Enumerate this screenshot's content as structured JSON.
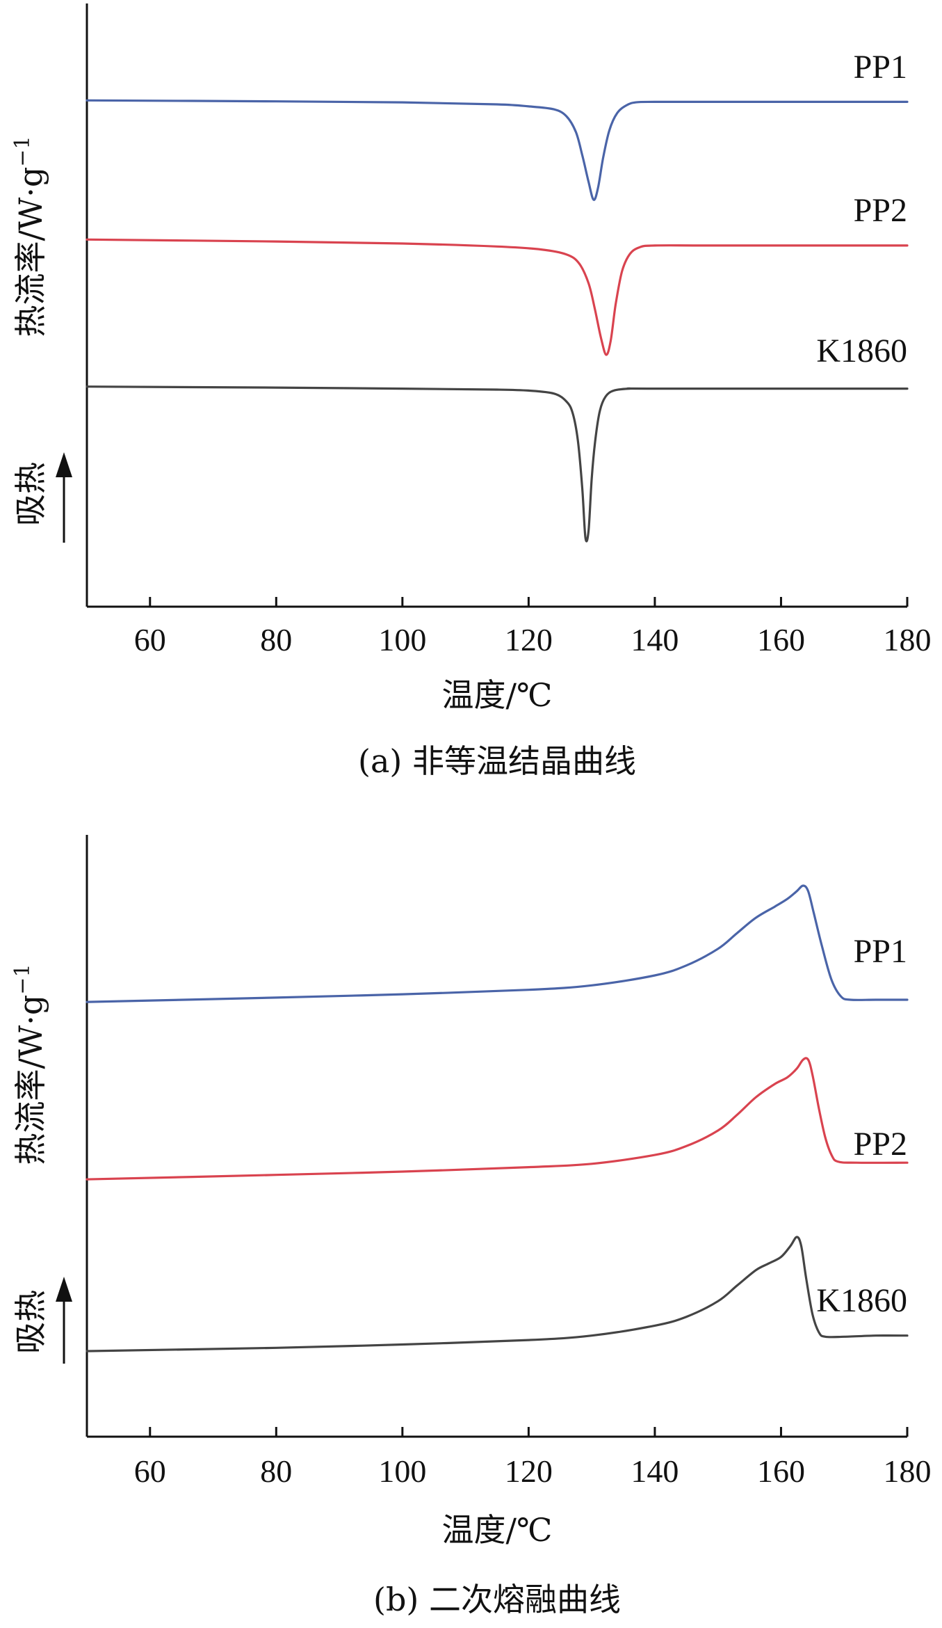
{
  "chart_data": [
    {
      "type": "line",
      "caption": "(a) 非等温结晶曲线",
      "xlabel": "温度/℃",
      "ylabel": "热流率/W·g",
      "ylabel_sup": "−1",
      "direction_label": "吸热",
      "direction_arrow": "up",
      "xlim": [
        50,
        180
      ],
      "xticks": [
        60,
        80,
        100,
        120,
        140,
        160,
        180
      ],
      "yticks": [],
      "grid": false,
      "legend": "inline-right",
      "series": [
        {
          "name": "PP1",
          "color": "#4a64a8",
          "x": [
            50,
            80,
            100,
            115,
            120,
            124,
            126,
            127.5,
            128.5,
            129.5,
            130.3,
            131,
            131.8,
            132.8,
            134,
            135.5,
            137,
            140,
            150,
            180
          ],
          "y": [
            0.0,
            -0.01,
            -0.02,
            -0.04,
            -0.06,
            -0.09,
            -0.16,
            -0.32,
            -0.55,
            -0.82,
            -1.0,
            -0.88,
            -0.58,
            -0.3,
            -0.13,
            -0.05,
            -0.02,
            -0.015,
            -0.015,
            -0.015
          ]
        },
        {
          "name": "PP2",
          "color": "#d9434f",
          "x": [
            50,
            80,
            100,
            115,
            122,
            126,
            128,
            129.5,
            130.5,
            131.5,
            132.3,
            133,
            133.8,
            134.8,
            136,
            137.5,
            140,
            150,
            180
          ],
          "y": [
            -1.4,
            -1.42,
            -1.44,
            -1.47,
            -1.5,
            -1.55,
            -1.64,
            -1.84,
            -2.1,
            -2.4,
            -2.56,
            -2.42,
            -2.05,
            -1.72,
            -1.55,
            -1.48,
            -1.46,
            -1.46,
            -1.46
          ]
        },
        {
          "name": "K1860",
          "color": "#444444",
          "x": [
            50,
            80,
            100,
            115,
            120,
            124,
            126,
            127,
            127.8,
            128.5,
            129,
            129.5,
            130,
            130.6,
            131.3,
            132.2,
            133.5,
            136,
            140,
            180
          ],
          "y": [
            -2.88,
            -2.89,
            -2.9,
            -2.91,
            -2.92,
            -2.95,
            -3.03,
            -3.15,
            -3.42,
            -3.9,
            -4.4,
            -4.33,
            -3.8,
            -3.4,
            -3.12,
            -2.98,
            -2.92,
            -2.9,
            -2.9,
            -2.9
          ]
        }
      ]
    },
    {
      "type": "line",
      "caption": "(b) 二次熔融曲线",
      "xlabel": "温度/℃",
      "ylabel": "热流率/W·g",
      "ylabel_sup": "−1",
      "direction_label": "吸热",
      "direction_arrow": "up",
      "xlim": [
        50,
        180
      ],
      "xticks": [
        60,
        80,
        100,
        120,
        140,
        160,
        180
      ],
      "yticks": [],
      "grid": false,
      "legend": "inline-right",
      "series": [
        {
          "name": "PP1",
          "color": "#4a64a8",
          "x": [
            50,
            80,
            100,
            120,
            130,
            140,
            145,
            150,
            153,
            156,
            159,
            161,
            162.5,
            163.5,
            164.3,
            165.2,
            166.5,
            168,
            169.5,
            171,
            175,
            180
          ],
          "y": [
            0.0,
            0.04,
            0.07,
            0.11,
            0.15,
            0.24,
            0.33,
            0.48,
            0.62,
            0.76,
            0.86,
            0.93,
            1.0,
            1.05,
            1.0,
            0.8,
            0.5,
            0.2,
            0.05,
            0.02,
            0.02,
            0.02
          ]
        },
        {
          "name": "PP2",
          "color": "#d9434f",
          "x": [
            50,
            80,
            100,
            120,
            130,
            140,
            145,
            150,
            153,
            156,
            159,
            161,
            162.5,
            163.5,
            164.3,
            165,
            166,
            167,
            168,
            169,
            172,
            180
          ],
          "y": [
            -1.6,
            -1.56,
            -1.53,
            -1.49,
            -1.46,
            -1.38,
            -1.3,
            -1.16,
            -1.02,
            -0.86,
            -0.74,
            -0.68,
            -0.6,
            -0.52,
            -0.52,
            -0.66,
            -0.96,
            -1.22,
            -1.38,
            -1.44,
            -1.45,
            -1.45
          ]
        },
        {
          "name": "K1860",
          "color": "#444444",
          "x": [
            50,
            80,
            100,
            120,
            130,
            140,
            145,
            150,
            153,
            156,
            158,
            160,
            161.5,
            162.5,
            163.2,
            164,
            165,
            166,
            167,
            170,
            175,
            180
          ],
          "y": [
            -3.15,
            -3.12,
            -3.09,
            -3.05,
            -3.01,
            -2.92,
            -2.84,
            -2.7,
            -2.56,
            -2.42,
            -2.36,
            -2.3,
            -2.2,
            -2.12,
            -2.2,
            -2.5,
            -2.82,
            -2.98,
            -3.02,
            -3.02,
            -3.01,
            -3.01
          ]
        }
      ]
    }
  ]
}
